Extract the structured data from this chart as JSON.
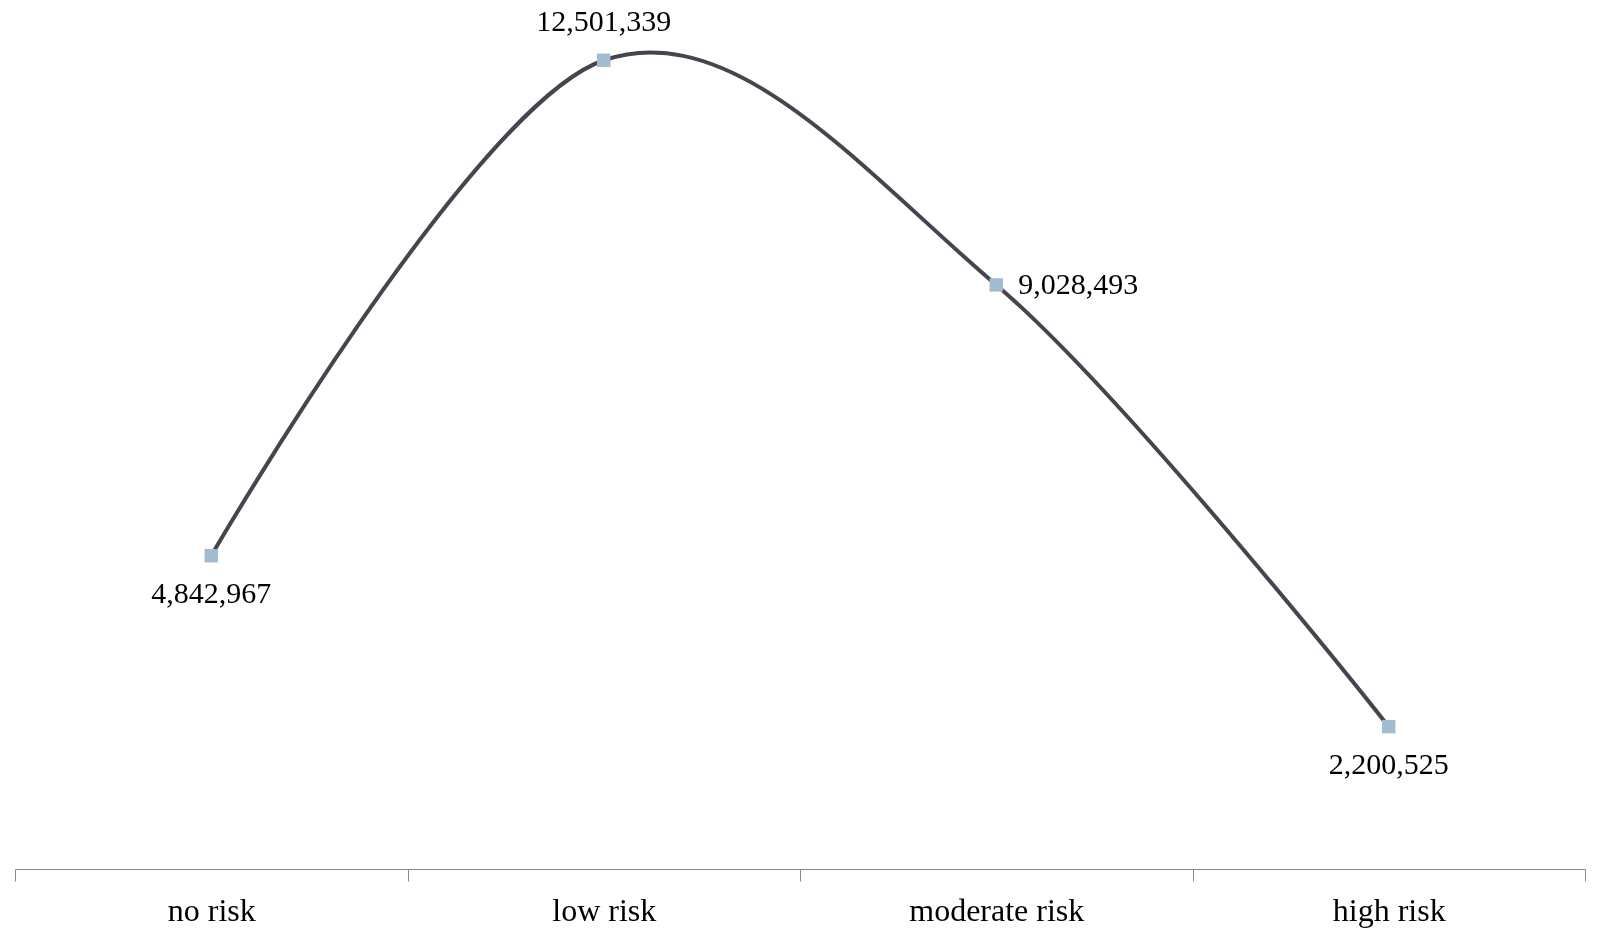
{
  "chart_data": {
    "type": "line",
    "categories": [
      "no risk",
      "low risk",
      "moderate risk",
      "high risk"
    ],
    "values": [
      4842967,
      12501339,
      9028493,
      2200525
    ],
    "color": "#46454f",
    "colors": [
      "#a3bbd0",
      "#a3bbd0",
      "#a3bbd0",
      "#a3bbd0"
    ],
    "value_labels": [
      "4,842,967",
      "12,501,339",
      "9,028,493",
      "2,200,525"
    ],
    "marker": "square",
    "line_style": "solid"
  }
}
